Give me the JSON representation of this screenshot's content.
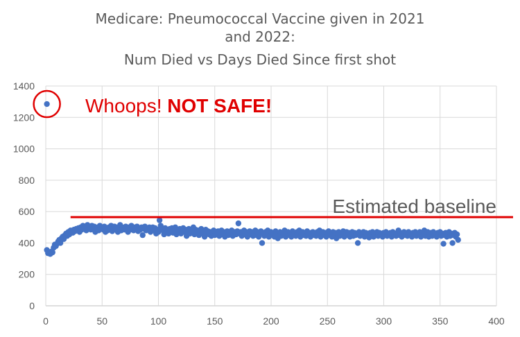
{
  "chart_data": {
    "type": "scatter",
    "title_lines": [
      "Medicare: Pneumococcal Vaccine given in 2021",
      "and 2022:",
      "Num Died vs Days Died Since first shot"
    ],
    "xlim": [
      0,
      400
    ],
    "ylim": [
      0,
      1400
    ],
    "x_ticks": [
      0,
      50,
      100,
      150,
      200,
      250,
      300,
      350,
      400
    ],
    "y_ticks": [
      0,
      200,
      400,
      600,
      800,
      1000,
      1200,
      1400
    ],
    "grid": true,
    "series_color": "#4472c4",
    "outlier": {
      "x": 1,
      "y": 1285
    },
    "annotation": {
      "prefix": "Whoops! ",
      "emphasis": "NOT SAFE!",
      "color": "#e00000"
    },
    "baseline": {
      "label": "Estimated baseline",
      "y": 565,
      "x_start": 22,
      "color": "#e00000"
    },
    "points": [
      [
        1,
        1285
      ],
      [
        1,
        355
      ],
      [
        2,
        335
      ],
      [
        3,
        340
      ],
      [
        4,
        330
      ],
      [
        5,
        345
      ],
      [
        6,
        340
      ],
      [
        7,
        370
      ],
      [
        8,
        390
      ],
      [
        9,
        380
      ],
      [
        10,
        395
      ],
      [
        11,
        410
      ],
      [
        12,
        420
      ],
      [
        13,
        400
      ],
      [
        14,
        430
      ],
      [
        15,
        440
      ],
      [
        16,
        425
      ],
      [
        17,
        450
      ],
      [
        18,
        460
      ],
      [
        19,
        445
      ],
      [
        20,
        470
      ],
      [
        21,
        455
      ],
      [
        22,
        480
      ],
      [
        23,
        470
      ],
      [
        24,
        465
      ],
      [
        25,
        485
      ],
      [
        26,
        475
      ],
      [
        27,
        490
      ],
      [
        28,
        480
      ],
      [
        29,
        495
      ],
      [
        30,
        470
      ],
      [
        31,
        500
      ],
      [
        32,
        485
      ],
      [
        33,
        510
      ],
      [
        34,
        490
      ],
      [
        35,
        505
      ],
      [
        36,
        480
      ],
      [
        37,
        515
      ],
      [
        38,
        495
      ],
      [
        39,
        500
      ],
      [
        40,
        485
      ],
      [
        41,
        510
      ],
      [
        42,
        490
      ],
      [
        43,
        505
      ],
      [
        44,
        470
      ],
      [
        45,
        495
      ],
      [
        46,
        500
      ],
      [
        47,
        480
      ],
      [
        48,
        510
      ],
      [
        49,
        490
      ],
      [
        50,
        500
      ],
      [
        51,
        485
      ],
      [
        52,
        505
      ],
      [
        53,
        470
      ],
      [
        54,
        495
      ],
      [
        55,
        480
      ],
      [
        56,
        500
      ],
      [
        57,
        490
      ],
      [
        58,
        510
      ],
      [
        59,
        475
      ],
      [
        60,
        495
      ],
      [
        61,
        505
      ],
      [
        62,
        485
      ],
      [
        63,
        500
      ],
      [
        64,
        470
      ],
      [
        65,
        490
      ],
      [
        66,
        515
      ],
      [
        67,
        480
      ],
      [
        68,
        500
      ],
      [
        69,
        495
      ],
      [
        70,
        485
      ],
      [
        71,
        505
      ],
      [
        72,
        490
      ],
      [
        73,
        470
      ],
      [
        74,
        500
      ],
      [
        75,
        485
      ],
      [
        76,
        510
      ],
      [
        77,
        495
      ],
      [
        78,
        480
      ],
      [
        79,
        500
      ],
      [
        80,
        490
      ],
      [
        81,
        505
      ],
      [
        82,
        475
      ],
      [
        83,
        495
      ],
      [
        84,
        485
      ],
      [
        85,
        500
      ],
      [
        86,
        450
      ],
      [
        87,
        490
      ],
      [
        88,
        505
      ],
      [
        89,
        480
      ],
      [
        90,
        495
      ],
      [
        91,
        485
      ],
      [
        92,
        500
      ],
      [
        93,
        470
      ],
      [
        94,
        490
      ],
      [
        95,
        500
      ],
      [
        96,
        480
      ],
      [
        97,
        495
      ],
      [
        98,
        460
      ],
      [
        99,
        485
      ],
      [
        100,
        470
      ],
      [
        101,
        545
      ],
      [
        102,
        510
      ],
      [
        103,
        490
      ],
      [
        104,
        480
      ],
      [
        105,
        455
      ],
      [
        106,
        495
      ],
      [
        107,
        470
      ],
      [
        108,
        485
      ],
      [
        109,
        460
      ],
      [
        110,
        490
      ],
      [
        111,
        475
      ],
      [
        112,
        495
      ],
      [
        113,
        465
      ],
      [
        114,
        480
      ],
      [
        115,
        500
      ],
      [
        116,
        455
      ],
      [
        117,
        485
      ],
      [
        118,
        470
      ],
      [
        119,
        490
      ],
      [
        120,
        460
      ],
      [
        121,
        480
      ],
      [
        122,
        495
      ],
      [
        123,
        470
      ],
      [
        124,
        485
      ],
      [
        125,
        445
      ],
      [
        126,
        475
      ],
      [
        127,
        490
      ],
      [
        128,
        460
      ],
      [
        129,
        480
      ],
      [
        130,
        470
      ],
      [
        131,
        500
      ],
      [
        132,
        455
      ],
      [
        133,
        485
      ],
      [
        134,
        465
      ],
      [
        135,
        480
      ],
      [
        136,
        450
      ],
      [
        137,
        475
      ],
      [
        138,
        490
      ],
      [
        139,
        460
      ],
      [
        140,
        470
      ],
      [
        141,
        440
      ],
      [
        142,
        485
      ],
      [
        143,
        460
      ],
      [
        144,
        475
      ],
      [
        145,
        455
      ],
      [
        146,
        470
      ],
      [
        147,
        445
      ],
      [
        148,
        465
      ],
      [
        149,
        480
      ],
      [
        150,
        450
      ],
      [
        151,
        470
      ],
      [
        152,
        460
      ],
      [
        153,
        475
      ],
      [
        154,
        445
      ],
      [
        155,
        465
      ],
      [
        156,
        480
      ],
      [
        157,
        455
      ],
      [
        158,
        470
      ],
      [
        159,
        440
      ],
      [
        160,
        465
      ],
      [
        161,
        475
      ],
      [
        162,
        450
      ],
      [
        163,
        470
      ],
      [
        164,
        460
      ],
      [
        165,
        480
      ],
      [
        166,
        445
      ],
      [
        167,
        465
      ],
      [
        168,
        470
      ],
      [
        169,
        455
      ],
      [
        170,
        475
      ],
      [
        171,
        525
      ],
      [
        172,
        460
      ],
      [
        173,
        470
      ],
      [
        174,
        445
      ],
      [
        175,
        465
      ],
      [
        176,
        480
      ],
      [
        177,
        455
      ],
      [
        178,
        470
      ],
      [
        179,
        440
      ],
      [
        180,
        465
      ],
      [
        181,
        475
      ],
      [
        182,
        455
      ],
      [
        183,
        470
      ],
      [
        184,
        445
      ],
      [
        185,
        460
      ],
      [
        186,
        480
      ],
      [
        187,
        450
      ],
      [
        188,
        470
      ],
      [
        189,
        440
      ],
      [
        190,
        460
      ],
      [
        191,
        475
      ],
      [
        192,
        400
      ],
      [
        193,
        465
      ],
      [
        194,
        445
      ],
      [
        195,
        470
      ],
      [
        196,
        455
      ],
      [
        197,
        480
      ],
      [
        198,
        440
      ],
      [
        199,
        460
      ],
      [
        200,
        470
      ],
      [
        201,
        450
      ],
      [
        202,
        465
      ],
      [
        203,
        440
      ],
      [
        204,
        475
      ],
      [
        205,
        455
      ],
      [
        206,
        430
      ],
      [
        207,
        460
      ],
      [
        208,
        470
      ],
      [
        209,
        445
      ],
      [
        210,
        465
      ],
      [
        211,
        455
      ],
      [
        212,
        480
      ],
      [
        213,
        440
      ],
      [
        214,
        460
      ],
      [
        215,
        470
      ],
      [
        216,
        450
      ],
      [
        217,
        465
      ],
      [
        218,
        440
      ],
      [
        219,
        475
      ],
      [
        220,
        455
      ],
      [
        221,
        465
      ],
      [
        222,
        445
      ],
      [
        223,
        470
      ],
      [
        224,
        455
      ],
      [
        225,
        480
      ],
      [
        226,
        440
      ],
      [
        227,
        460
      ],
      [
        228,
        470
      ],
      [
        229,
        450
      ],
      [
        230,
        465
      ],
      [
        231,
        445
      ],
      [
        232,
        475
      ],
      [
        233,
        455
      ],
      [
        234,
        465
      ],
      [
        235,
        440
      ],
      [
        236,
        460
      ],
      [
        237,
        470
      ],
      [
        238,
        450
      ],
      [
        239,
        465
      ],
      [
        240,
        445
      ],
      [
        241,
        470
      ],
      [
        242,
        455
      ],
      [
        243,
        480
      ],
      [
        244,
        440
      ],
      [
        245,
        460
      ],
      [
        246,
        470
      ],
      [
        247,
        450
      ],
      [
        248,
        465
      ],
      [
        249,
        440
      ],
      [
        250,
        460
      ],
      [
        251,
        475
      ],
      [
        252,
        450
      ],
      [
        253,
        465
      ],
      [
        254,
        440
      ],
      [
        255,
        470
      ],
      [
        256,
        455
      ],
      [
        257,
        465
      ],
      [
        258,
        430
      ],
      [
        259,
        460
      ],
      [
        260,
        470
      ],
      [
        261,
        445
      ],
      [
        262,
        465
      ],
      [
        263,
        455
      ],
      [
        264,
        475
      ],
      [
        265,
        440
      ],
      [
        266,
        460
      ],
      [
        267,
        470
      ],
      [
        268,
        450
      ],
      [
        269,
        465
      ],
      [
        270,
        440
      ],
      [
        271,
        455
      ],
      [
        272,
        470
      ],
      [
        273,
        445
      ],
      [
        274,
        465
      ],
      [
        275,
        450
      ],
      [
        276,
        460
      ],
      [
        277,
        400
      ],
      [
        278,
        470
      ],
      [
        279,
        445
      ],
      [
        280,
        460
      ],
      [
        281,
        455
      ],
      [
        282,
        470
      ],
      [
        283,
        440
      ],
      [
        284,
        465
      ],
      [
        285,
        450
      ],
      [
        286,
        460
      ],
      [
        287,
        435
      ],
      [
        288,
        465
      ],
      [
        289,
        450
      ],
      [
        290,
        470
      ],
      [
        291,
        440
      ],
      [
        292,
        460
      ],
      [
        293,
        455
      ],
      [
        294,
        470
      ],
      [
        295,
        445
      ],
      [
        296,
        465
      ],
      [
        297,
        450
      ],
      [
        298,
        460
      ],
      [
        299,
        440
      ],
      [
        300,
        465
      ],
      [
        301,
        455
      ],
      [
        302,
        470
      ],
      [
        303,
        445
      ],
      [
        304,
        460
      ],
      [
        305,
        450
      ],
      [
        306,
        465
      ],
      [
        307,
        440
      ],
      [
        308,
        470
      ],
      [
        309,
        455
      ],
      [
        310,
        460
      ],
      [
        311,
        445
      ],
      [
        312,
        465
      ],
      [
        313,
        480
      ],
      [
        314,
        450
      ],
      [
        315,
        465
      ],
      [
        316,
        440
      ],
      [
        317,
        460
      ],
      [
        318,
        470
      ],
      [
        319,
        450
      ],
      [
        320,
        465
      ],
      [
        321,
        445
      ],
      [
        322,
        470
      ],
      [
        323,
        455
      ],
      [
        324,
        460
      ],
      [
        325,
        440
      ],
      [
        326,
        465
      ],
      [
        327,
        450
      ],
      [
        328,
        470
      ],
      [
        329,
        445
      ],
      [
        330,
        460
      ],
      [
        331,
        455
      ],
      [
        332,
        470
      ],
      [
        333,
        440
      ],
      [
        334,
        465
      ],
      [
        335,
        450
      ],
      [
        336,
        480
      ],
      [
        337,
        445
      ],
      [
        338,
        460
      ],
      [
        339,
        470
      ],
      [
        340,
        440
      ],
      [
        341,
        455
      ],
      [
        342,
        465
      ],
      [
        343,
        445
      ],
      [
        344,
        470
      ],
      [
        345,
        450
      ],
      [
        346,
        460
      ],
      [
        347,
        440
      ],
      [
        348,
        465
      ],
      [
        349,
        455
      ],
      [
        350,
        470
      ],
      [
        351,
        445
      ],
      [
        352,
        460
      ],
      [
        353,
        395
      ],
      [
        354,
        450
      ],
      [
        355,
        465
      ],
      [
        356,
        440
      ],
      [
        357,
        455
      ],
      [
        358,
        470
      ],
      [
        359,
        445
      ],
      [
        360,
        460
      ],
      [
        361,
        400
      ],
      [
        362,
        450
      ],
      [
        363,
        465
      ],
      [
        364,
        440
      ],
      [
        365,
        455
      ],
      [
        366,
        420
      ]
    ]
  }
}
